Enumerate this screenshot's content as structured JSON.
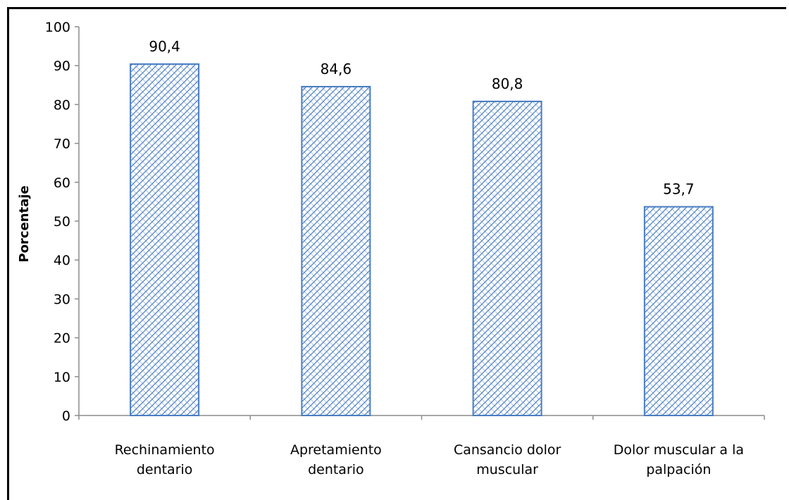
{
  "chart_data": {
    "type": "bar",
    "categories": [
      "Rechinamiento dentario",
      "Apretamiento dentario",
      "Cansancio dolor muscular",
      "Dolor muscular  a la palpación"
    ],
    "category_lines": [
      [
        "Rechinamiento",
        "dentario"
      ],
      [
        "Apretamiento",
        "dentario"
      ],
      [
        "Cansancio dolor",
        "muscular"
      ],
      [
        "Dolor muscular  a la",
        "palpación"
      ]
    ],
    "values": [
      90.4,
      84.6,
      80.8,
      53.7
    ],
    "data_labels": [
      "90,4",
      "84,6",
      "80,8",
      "53,7"
    ],
    "ylabel": "Porcentaje",
    "xlabel": "",
    "ylim": [
      0,
      100
    ],
    "yticks": [
      0,
      10,
      20,
      30,
      40,
      50,
      60,
      70,
      80,
      90,
      100
    ],
    "grid": false,
    "bar_fill_pattern": "crosshatch",
    "bar_color": "#4a7ec2"
  }
}
